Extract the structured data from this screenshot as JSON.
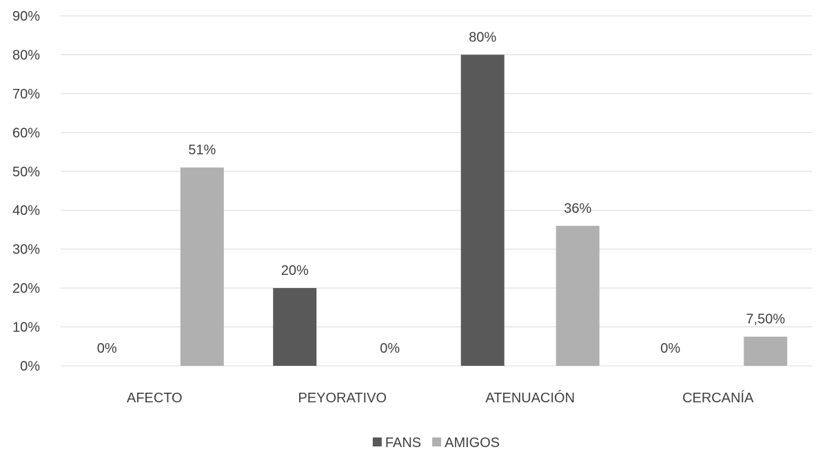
{
  "chart_data": {
    "type": "bar",
    "categories": [
      "AFECTO",
      "PEYORATIVO",
      "ATENUACIÓN",
      "CERCANÍA"
    ],
    "series": [
      {
        "name": "FANS",
        "values": [
          0,
          20,
          80,
          0
        ],
        "labels": [
          "0%",
          "20%",
          "80%",
          "0%"
        ],
        "color": "#595959"
      },
      {
        "name": "AMIGOS",
        "values": [
          51,
          0,
          36,
          7.5
        ],
        "labels": [
          "51%",
          "0%",
          "36%",
          "7,50%"
        ],
        "color": "#b0b0b0"
      }
    ],
    "yticks": [
      "0%",
      "10%",
      "20%",
      "30%",
      "40%",
      "50%",
      "60%",
      "70%",
      "80%",
      "90%"
    ],
    "ylim": [
      0,
      90
    ],
    "title": "",
    "xlabel": "",
    "ylabel": "",
    "grid": true,
    "gridline_color": "#d9d9d9",
    "legend_position": "bottom"
  }
}
